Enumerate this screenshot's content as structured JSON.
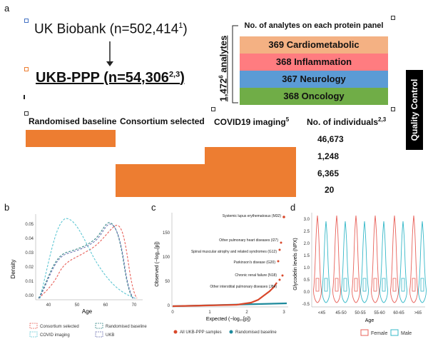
{
  "panel_labels": {
    "a": "a",
    "b": "b",
    "c": "c",
    "d": "d"
  },
  "panel_a": {
    "uk_biobank": "UK Biobank (n=502,414",
    "uk_biobank_sup": "1",
    "uk_biobank_close": ")",
    "ukb_ppp": "UKB-PPP (n=54,306",
    "ukb_ppp_sup": "2,3",
    "ukb_ppp_close": ")",
    "analytes": "1,472",
    "analytes_sup": "6",
    "analytes_word": " analytes",
    "panel_header": "No. of analytes on each protein panel",
    "panels": [
      {
        "label": "369 Cardiometabolic",
        "color": "#f4b183"
      },
      {
        "label": "368 Inflammation",
        "color": "#ff7c80"
      },
      {
        "label": "367 Neurology",
        "color": "#5b9bd5"
      },
      {
        "label": "368 Oncology",
        "color": "#70ad47"
      }
    ],
    "quality_control": "Quality Control",
    "columns": [
      "Randomised baseline",
      "Consortium selected",
      "COVID19 imaging"
    ],
    "covid_sup": "5",
    "individuals_header": "No. of individuals",
    "individuals_sup": "2,3",
    "counts": [
      "46,673",
      "1,248",
      "6,365",
      "20"
    ],
    "bar_color": "#ed7d31"
  },
  "panel_b": {
    "ylabel": "Density",
    "xlabel": "Age",
    "yticks": [
      "0.00",
      "0.01",
      "0.02",
      "0.03",
      "0.04",
      "0.05"
    ],
    "xticks": [
      "40",
      "50",
      "60",
      "70"
    ],
    "legend": [
      {
        "label": "Consortium selected",
        "color": "#e8615a"
      },
      {
        "label": "Randomised baseline",
        "color": "#3a8a8a"
      },
      {
        "label": "COVID imaging",
        "color": "#5fc7d4"
      },
      {
        "label": "UKB",
        "color": "#6a6fb0"
      }
    ]
  },
  "panel_c": {
    "ylabel": "Observed (−log₁₀[p])",
    "xlabel": "Expected (−log₁₀[p])",
    "yticks": [
      "0",
      "50",
      "100",
      "150"
    ],
    "xticks": [
      "0",
      "1",
      "2",
      "3"
    ],
    "annotations": [
      "Systemic lupus erythematosus (M32)",
      "Other pulmonary heart diseases (I27)",
      "Spinal muscular atrophy and related syndromes (G12)",
      "Parkinson's disease (G20)",
      "Chronic renal failure (N18)",
      "Other interstitial pulmonary diseases (J84)"
    ],
    "legend": [
      {
        "label": "All UKB-PPP samples",
        "color": "#d9482b"
      },
      {
        "label": "Randomised baseline",
        "color": "#1d8a9c"
      }
    ]
  },
  "panel_d": {
    "ylabel": "Glycodelin levels (NPX)",
    "xlabel": "Age",
    "yticks": [
      "-0.5",
      "0.0",
      "0.5",
      "1.0",
      "1.5",
      "2.0",
      "2.5",
      "3.0"
    ],
    "xticks": [
      "<45",
      "45-50",
      "50-55",
      "55-60",
      "60-65",
      ">65"
    ],
    "legend": [
      {
        "label": "Female",
        "color": "#e8615a"
      },
      {
        "label": "Male",
        "color": "#35b8c8"
      }
    ]
  }
}
